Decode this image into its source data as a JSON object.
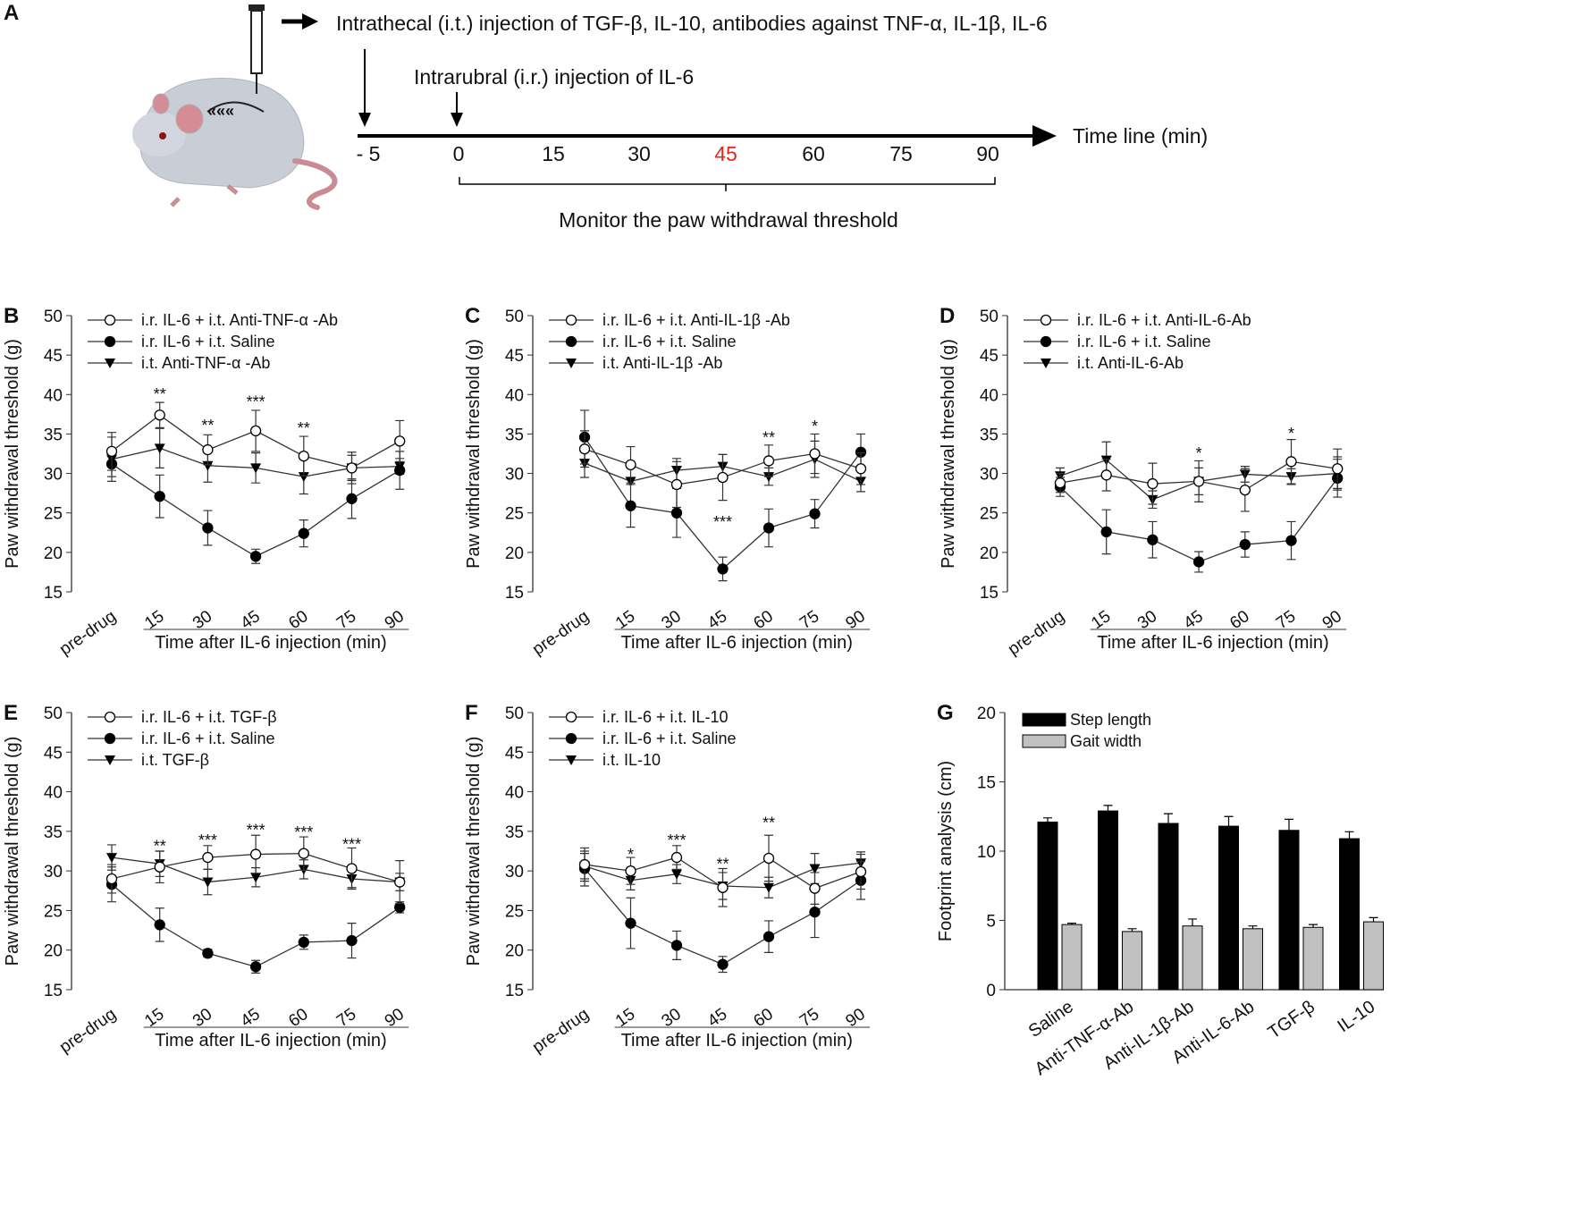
{
  "panel_a": {
    "letter": "A",
    "it_text": "Intrathecal (i.t.) injection of TGF-β, IL-10, antibodies against TNF-α, IL-1β, IL-6",
    "ir_text": "Intrarubral (i.r.) injection of IL-6",
    "timeline_label": "Time line (min)",
    "ticks": [
      "- 5",
      "0",
      "15",
      "30",
      "45",
      "60",
      "75",
      "90"
    ],
    "highlight_tick": "45",
    "highlight_color": "#e8251f",
    "monitor_text": "Monitor the paw withdrawal threshold"
  },
  "chart_data": [
    {
      "letter": "B",
      "type": "line",
      "ylabel": "Paw withdrawal threshold (g)",
      "xlabel": "Time after IL-6 injection (min)",
      "ylim": [
        15,
        50
      ],
      "yticks": [
        "15",
        "20",
        "25",
        "30",
        "35",
        "40",
        "45",
        "50"
      ],
      "categories": [
        "pre-drug",
        "15",
        "30",
        "45",
        "60",
        "75",
        "90"
      ],
      "series": [
        {
          "name": "i.r. IL-6 + i.t. Anti-TNF-α -Ab",
          "marker": "open-circle",
          "values": [
            32.8,
            37.4,
            33.0,
            35.4,
            32.2,
            30.7,
            34.1
          ],
          "err": [
            2.4,
            1.6,
            1.9,
            2.6,
            2.5,
            2.0,
            2.6
          ]
        },
        {
          "name": "i.r. IL-6 + i.t. Saline",
          "marker": "filled-circle",
          "values": [
            31.2,
            27.1,
            23.1,
            19.5,
            22.4,
            26.8,
            30.4
          ],
          "err": [
            1.6,
            2.7,
            2.2,
            0.9,
            1.7,
            2.5,
            2.4
          ]
        },
        {
          "name": "i.t. Anti-TNF-α -Ab",
          "marker": "triangle-down",
          "values": [
            31.8,
            33.2,
            31.0,
            30.7,
            29.6,
            30.7,
            30.9
          ],
          "err": [
            2.8,
            2.5,
            2.1,
            1.9,
            2.2,
            1.6,
            1.0
          ]
        }
      ],
      "annotations": [
        {
          "x": "15",
          "text": "**",
          "y": 40.5
        },
        {
          "x": "30",
          "text": "**",
          "y": 36.5
        },
        {
          "x": "45",
          "text": "***",
          "y": 39.5
        },
        {
          "x": "60",
          "text": "**",
          "y": 36.2
        }
      ]
    },
    {
      "letter": "C",
      "type": "line",
      "ylabel": "Paw withdrawal threshold (g)",
      "xlabel": "Time after IL-6 injection (min)",
      "ylim": [
        15,
        50
      ],
      "yticks": [
        "15",
        "20",
        "25",
        "30",
        "35",
        "40",
        "45",
        "50"
      ],
      "categories": [
        "pre-drug",
        "15",
        "30",
        "45",
        "60",
        "75",
        "90"
      ],
      "series": [
        {
          "name": "i.r. IL-6 + i.t. Anti-IL-1β -Ab",
          "marker": "open-circle",
          "values": [
            33.1,
            31.1,
            28.6,
            29.5,
            31.6,
            32.5,
            30.6
          ],
          "err": [
            2.3,
            2.3,
            2.9,
            2.9,
            2.0,
            2.5,
            2.0
          ]
        },
        {
          "name": "i.r. IL-6 + i.t. Saline",
          "marker": "filled-circle",
          "values": [
            34.6,
            25.9,
            25.0,
            17.9,
            23.1,
            24.9,
            32.7
          ],
          "err": [
            3.4,
            2.7,
            3.1,
            1.5,
            2.4,
            1.8,
            2.3
          ]
        },
        {
          "name": "i.t. Anti-IL-1β -Ab",
          "marker": "triangle-down",
          "values": [
            31.3,
            29.0,
            30.4,
            30.9,
            29.6,
            31.8,
            29.0
          ],
          "err": [
            1.8,
            0.4,
            1.5,
            1.5,
            1.1,
            2.3,
            1.3
          ]
        }
      ],
      "annotations": [
        {
          "x": "45",
          "text": "***",
          "y": 24.3
        },
        {
          "x": "60",
          "text": "**",
          "y": 35.0
        },
        {
          "x": "75",
          "text": "*",
          "y": 36.4
        }
      ]
    },
    {
      "letter": "D",
      "type": "line",
      "ylabel": "Paw withdrawal threshold (g)",
      "xlabel": "Time after IL-6 injection (min)",
      "ylim": [
        15,
        50
      ],
      "yticks": [
        "15",
        "20",
        "25",
        "30",
        "35",
        "40",
        "45",
        "50"
      ],
      "categories": [
        "pre-drug",
        "15",
        "30",
        "45",
        "60",
        "75",
        "90"
      ],
      "series": [
        {
          "name": "i.r. IL-6 + i.t. Anti-IL-6-Ab",
          "marker": "open-circle",
          "values": [
            28.8,
            29.8,
            28.7,
            29.0,
            27.9,
            31.5,
            30.6
          ],
          "err": [
            1.2,
            2.0,
            2.6,
            2.6,
            2.7,
            2.8,
            2.5
          ]
        },
        {
          "name": "i.r. IL-6 + i.t. Saline",
          "marker": "filled-circle",
          "values": [
            28.3,
            22.6,
            21.6,
            18.8,
            21.0,
            21.5,
            29.4
          ],
          "err": [
            1.2,
            2.8,
            2.3,
            1.3,
            1.6,
            2.4,
            2.4
          ]
        },
        {
          "name": "i.t. Anti-IL-6-Ab",
          "marker": "triangle-down",
          "values": [
            29.7,
            31.7,
            26.7,
            29.0,
            29.9,
            29.6,
            30.0
          ],
          "err": [
            1.0,
            2.3,
            1.1,
            1.7,
            1.0,
            1.0,
            2.1
          ]
        }
      ],
      "annotations": [
        {
          "x": "45",
          "text": "*",
          "y": 33.0
        },
        {
          "x": "75",
          "text": "*",
          "y": 35.5
        }
      ]
    },
    {
      "letter": "E",
      "type": "line",
      "ylabel": "Paw withdrawal threshold (g)",
      "xlabel": "Time after IL-6 injection (min)",
      "ylim": [
        15,
        50
      ],
      "yticks": [
        "15",
        "20",
        "25",
        "30",
        "35",
        "40",
        "45",
        "50"
      ],
      "categories": [
        "pre-drug",
        "15",
        "30",
        "45",
        "60",
        "75",
        "90"
      ],
      "series": [
        {
          "name": "i.r. IL-6 + i.t. TGF-β",
          "marker": "open-circle",
          "values": [
            29.0,
            30.5,
            31.7,
            32.1,
            32.2,
            30.3,
            28.6
          ],
          "err": [
            1.8,
            2.0,
            1.5,
            2.4,
            2.1,
            2.6,
            2.7
          ]
        },
        {
          "name": "i.r. IL-6 + i.t. Saline",
          "marker": "filled-circle",
          "values": [
            28.3,
            23.2,
            19.6,
            17.9,
            21.0,
            21.2,
            25.4
          ],
          "err": [
            2.2,
            2.1,
            0.5,
            0.8,
            0.9,
            2.2,
            0.7
          ]
        },
        {
          "name": "i.t. TGF-β",
          "marker": "triangle-down",
          "values": [
            31.7,
            30.9,
            28.6,
            29.2,
            30.2,
            29.0,
            28.6
          ],
          "err": [
            1.6,
            1.6,
            1.6,
            1.2,
            1.2,
            1.1,
            1.1
          ]
        }
      ],
      "annotations": [
        {
          "x": "15",
          "text": "**",
          "y": 33.6
        },
        {
          "x": "30",
          "text": "***",
          "y": 34.3
        },
        {
          "x": "45",
          "text": "***",
          "y": 35.6
        },
        {
          "x": "60",
          "text": "***",
          "y": 35.3
        },
        {
          "x": "75",
          "text": "***",
          "y": 33.8
        }
      ]
    },
    {
      "letter": "F",
      "type": "line",
      "ylabel": "Paw withdrawal threshold (g)",
      "xlabel": "Time after IL-6 injection (min)",
      "ylim": [
        15,
        50
      ],
      "yticks": [
        "15",
        "20",
        "25",
        "30",
        "35",
        "40",
        "45",
        "50"
      ],
      "categories": [
        "pre-drug",
        "15",
        "30",
        "45",
        "60",
        "75",
        "90"
      ],
      "series": [
        {
          "name": "i.r. IL-6 + i.t. IL-10",
          "marker": "open-circle",
          "values": [
            30.8,
            30.0,
            31.7,
            27.9,
            31.6,
            27.8,
            29.9
          ],
          "err": [
            2.1,
            1.7,
            1.5,
            2.4,
            2.9,
            2.0,
            2.2
          ]
        },
        {
          "name": "i.r. IL-6 + i.t. Saline",
          "marker": "filled-circle",
          "values": [
            30.3,
            23.4,
            20.6,
            18.2,
            21.7,
            24.8,
            28.8
          ],
          "err": [
            2.2,
            3.2,
            1.8,
            1.0,
            2.0,
            3.2,
            2.4
          ]
        },
        {
          "name": "i.t. IL-10",
          "marker": "triangle-down",
          "values": [
            30.6,
            28.8,
            29.6,
            28.1,
            27.9,
            30.3,
            31.0
          ],
          "err": [
            1.6,
            1.2,
            1.2,
            1.7,
            1.3,
            1.9,
            1.4
          ]
        }
      ],
      "annotations": [
        {
          "x": "15",
          "text": "*",
          "y": 32.5
        },
        {
          "x": "30",
          "text": "***",
          "y": 34.3
        },
        {
          "x": "45",
          "text": "**",
          "y": 31.3
        },
        {
          "x": "60",
          "text": "**",
          "y": 36.5
        }
      ]
    },
    {
      "letter": "G",
      "type": "bar",
      "ylabel": "Footprint analysis (cm)",
      "xlabel": "",
      "ylim": [
        0,
        20
      ],
      "yticks": [
        "0",
        "5",
        "10",
        "15",
        "20"
      ],
      "categories": [
        "Saline",
        "Anti-TNF-α-Ab",
        "Anti-IL-1β-Ab",
        "Anti-IL-6-Ab",
        "TGF-β",
        "IL-10"
      ],
      "series": [
        {
          "name": "Step length",
          "color": "#000000",
          "values": [
            12.1,
            12.9,
            12.0,
            11.8,
            11.5,
            10.9
          ],
          "err": [
            0.3,
            0.4,
            0.7,
            0.7,
            0.8,
            0.5
          ]
        },
        {
          "name": "Gait width",
          "color": "#c0c0c0",
          "values": [
            4.7,
            4.2,
            4.6,
            4.4,
            4.5,
            4.9
          ],
          "err": [
            0.1,
            0.2,
            0.5,
            0.2,
            0.2,
            0.3
          ]
        }
      ]
    }
  ]
}
